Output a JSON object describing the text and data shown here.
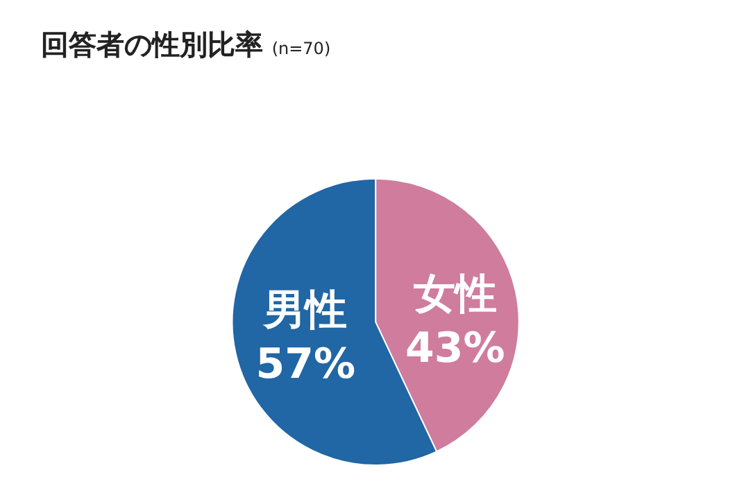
{
  "chart_data": {
    "type": "pie",
    "title": "回答者の性別比率",
    "subtitle": "(n=70)",
    "categories": [
      "女性",
      "男性"
    ],
    "values": [
      43,
      57
    ],
    "colors": [
      "#cf7c9d",
      "#2166a5"
    ],
    "value_labels": [
      "43%",
      "57%"
    ],
    "data_labels": true,
    "legend": false
  }
}
